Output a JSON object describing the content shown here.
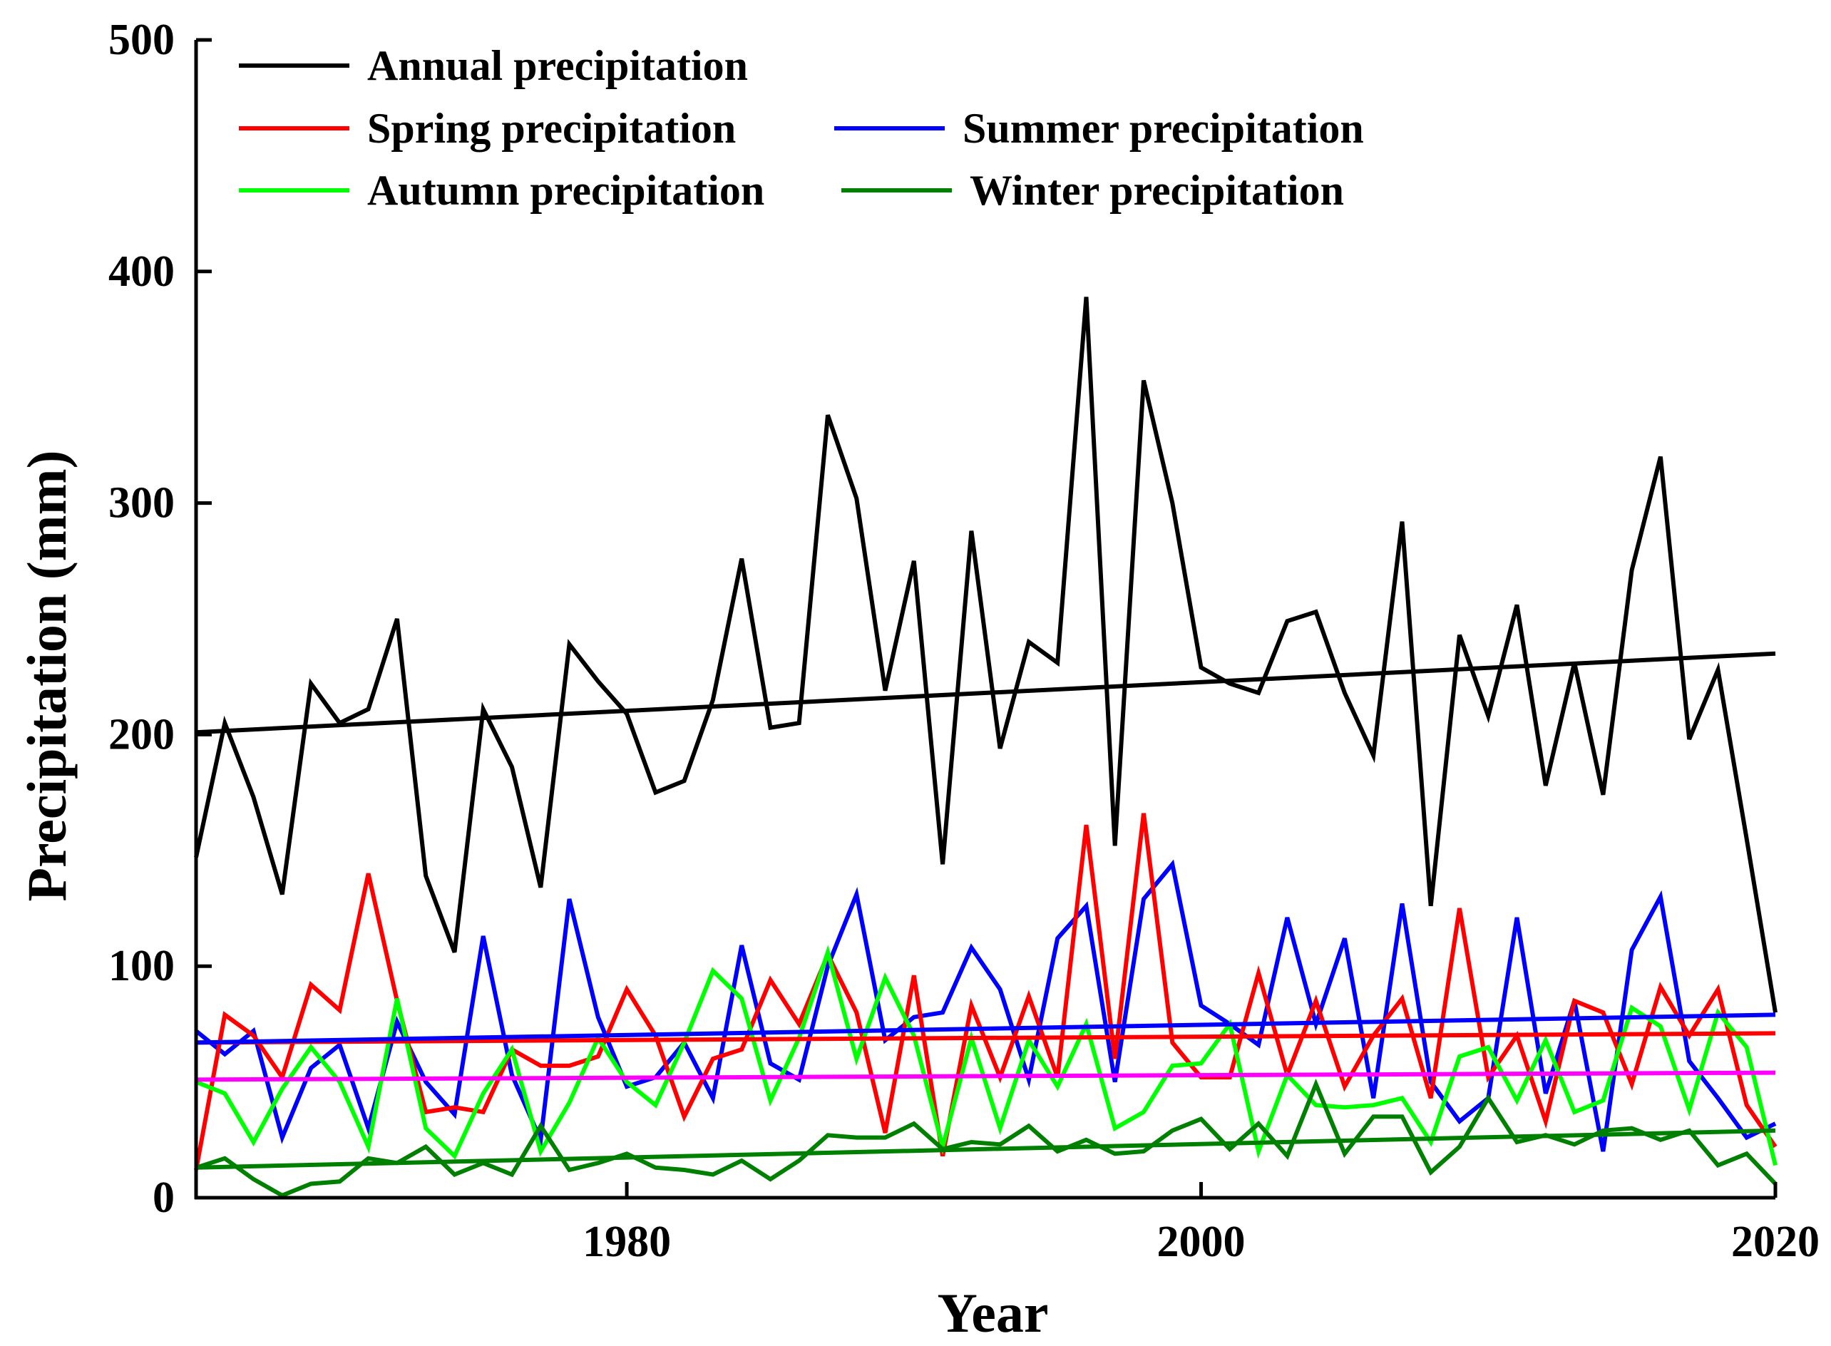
{
  "chart_data": {
    "type": "line",
    "title": "",
    "xlabel": "Year",
    "ylabel": "Precipitation (mm)",
    "xlim": [
      1965,
      2020
    ],
    "ylim": [
      0,
      500
    ],
    "x_ticks": [
      "1980",
      "2000",
      "2020"
    ],
    "y_ticks": [
      "0",
      "100",
      "200",
      "300",
      "400",
      "500"
    ],
    "years": [
      1965,
      1966,
      1967,
      1968,
      1969,
      1970,
      1971,
      1972,
      1973,
      1974,
      1975,
      1976,
      1977,
      1978,
      1979,
      1980,
      1981,
      1982,
      1983,
      1984,
      1985,
      1986,
      1987,
      1988,
      1989,
      1990,
      1991,
      1992,
      1993,
      1994,
      1995,
      1996,
      1997,
      1998,
      1999,
      2000,
      2001,
      2002,
      2003,
      2004,
      2005,
      2006,
      2007,
      2008,
      2009,
      2010,
      2011,
      2012,
      2013,
      2014,
      2015,
      2016,
      2017,
      2018,
      2019,
      2020
    ],
    "series": [
      {
        "name": "Annual precipitation",
        "legend_label": "Annual precipitation",
        "color": "#000000",
        "values": [
          147,
          205,
          173,
          131,
          222,
          205,
          211,
          250,
          139,
          106,
          211,
          186,
          134,
          239,
          223,
          209,
          175,
          180,
          215,
          276,
          203,
          205,
          338,
          302,
          219,
          275,
          144,
          288,
          194,
          240,
          231,
          389,
          152,
          353,
          300,
          229,
          222,
          218,
          249,
          253,
          218,
          191,
          292,
          126,
          243,
          208,
          256,
          178,
          231,
          174,
          271,
          320,
          198,
          228,
          155,
          80
        ]
      },
      {
        "name": "Spring precipitation",
        "legend_label": "Spring precipitation",
        "color": "#ff0000",
        "values": [
          12,
          79,
          70,
          52,
          92,
          81,
          140,
          85,
          37,
          39,
          37,
          64,
          57,
          57,
          61,
          90,
          70,
          35,
          60,
          64,
          94,
          75,
          105,
          80,
          28,
          96,
          18,
          83,
          52,
          87,
          52,
          161,
          60,
          166,
          67,
          52,
          52,
          97,
          53,
          85,
          48,
          70,
          86,
          43,
          125,
          52,
          70,
          33,
          85,
          80,
          49,
          91,
          70,
          90,
          40,
          22
        ]
      },
      {
        "name": "Summer precipitation",
        "legend_label": "Summer precipitation",
        "color": "#0000ff",
        "values": [
          72,
          62,
          72,
          26,
          56,
          66,
          30,
          76,
          50,
          36,
          113,
          53,
          25,
          129,
          78,
          48,
          52,
          67,
          43,
          109,
          58,
          51,
          100,
          131,
          68,
          78,
          80,
          108,
          90,
          51,
          112,
          126,
          50,
          129,
          144,
          83,
          75,
          66,
          121,
          75,
          112,
          43,
          127,
          50,
          33,
          43,
          121,
          45,
          85,
          20,
          107,
          130,
          59,
          43,
          26,
          32
        ]
      },
      {
        "name": "Autumn precipitation",
        "legend_label": "Autumn precipitation",
        "color": "#00ff00",
        "values": [
          50,
          45,
          24,
          47,
          65,
          50,
          22,
          86,
          30,
          18,
          45,
          64,
          20,
          41,
          69,
          50,
          40,
          67,
          98,
          86,
          42,
          69,
          106,
          60,
          95,
          70,
          22,
          69,
          30,
          68,
          48,
          75,
          30,
          37,
          57,
          58,
          75,
          20,
          53,
          40,
          39,
          40,
          43,
          24,
          61,
          65,
          42,
          68,
          37,
          42,
          82,
          74,
          38,
          80,
          65,
          14
        ]
      },
      {
        "name": "Winter precipitation",
        "legend_label": "Winter precipitation",
        "color": "#008000",
        "values": [
          13,
          17,
          8,
          1,
          6,
          7,
          17,
          15,
          22,
          10,
          15,
          10,
          31,
          12,
          15,
          19,
          13,
          12,
          10,
          16,
          8,
          16,
          27,
          26,
          26,
          32,
          21,
          24,
          23,
          31,
          20,
          25,
          19,
          20,
          29,
          34,
          21,
          32,
          18,
          49,
          19,
          35,
          35,
          11,
          22,
          43,
          24,
          27,
          23,
          29,
          30,
          25,
          29,
          14,
          19,
          6
        ]
      },
      {
        "name": "Annual trend",
        "color": "#000000",
        "values": [
          201,
          235
        ]
      },
      {
        "name": "Spring trend",
        "color": "#ff0000",
        "values": [
          67,
          71
        ]
      },
      {
        "name": "Summer trend",
        "color": "#0000ff",
        "values": [
          67,
          79
        ]
      },
      {
        "name": "Autumn trend",
        "color": "#ff00ff",
        "values": [
          51,
          54
        ]
      },
      {
        "name": "Winter trend",
        "color": "#008000",
        "values": [
          13,
          29
        ]
      }
    ],
    "legend": {
      "position": "top-left",
      "entries": [
        "Annual precipitation",
        "Spring precipitation",
        "Summer precipitation",
        "Autumn precipitation",
        "Winter precipitation"
      ]
    },
    "grid": false
  }
}
